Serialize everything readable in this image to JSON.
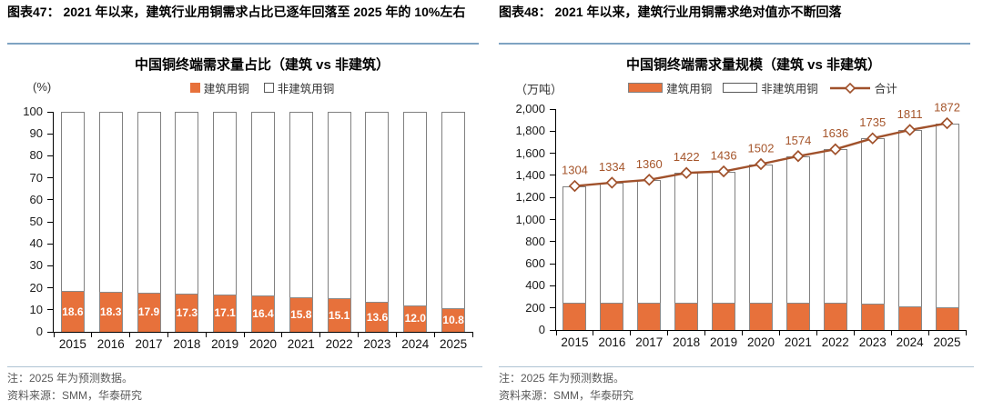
{
  "panels": [
    {
      "header": "图表47： 2021 年以来，建筑行业用铜需求占比已逐年回落至 2025 年的 10%左右",
      "chart_title": "中国铜终端需求量占比（建筑 vs 非建筑）",
      "unit_label": "(%)",
      "legend": {
        "construction": "建筑用铜",
        "non_construction": "非建筑用铜"
      },
      "note": "注：2025 年为预测数据。",
      "source": "资料来源：SMM，华泰研究"
    },
    {
      "header": "图表48： 2021 年以来，建筑行业用铜需求绝对值亦不断回落",
      "chart_title": "中国铜终端需求量规模（建筑 vs 非建筑）",
      "unit_label": "（万吨）",
      "legend": {
        "construction": "建筑用铜",
        "non_construction": "非建筑用铜",
        "total": "合计"
      },
      "note": "注：2025 年为预测数据。",
      "source": "资料来源：SMM，华泰研究"
    }
  ],
  "colors": {
    "bar_orange": "#E7713B",
    "bar_outline": "#808080",
    "line_brown": "#A0512B",
    "value_label_brown": "#A5552B",
    "header_rule_blue": "#7FA3C2",
    "footer_rule_blue": "#AFC3D4",
    "note_gray": "#595959"
  },
  "chart_data": [
    {
      "type": "bar",
      "stacked": true,
      "title": "中国铜终端需求量占比（建筑 vs 非建筑）",
      "unit": "%",
      "categories": [
        "2015",
        "2016",
        "2017",
        "2018",
        "2019",
        "2020",
        "2021",
        "2022",
        "2023",
        "2024",
        "2025"
      ],
      "series": [
        {
          "name": "建筑用铜",
          "values": [
            18.6,
            18.3,
            17.9,
            17.3,
            17.1,
            16.4,
            15.8,
            15.1,
            13.6,
            12.0,
            10.8
          ],
          "color": "#E7713B",
          "labels_shown": true
        },
        {
          "name": "非建筑用铜",
          "values": [
            81.4,
            81.7,
            82.1,
            82.7,
            82.9,
            83.6,
            84.2,
            84.9,
            86.4,
            88.0,
            89.2
          ],
          "color": "#FFFFFF"
        }
      ],
      "ylim": [
        0,
        100
      ],
      "ytick_step": 10,
      "grid": false,
      "legend_position": "top"
    },
    {
      "type": "bar+line",
      "stacked": true,
      "title": "中国铜终端需求量规模（建筑 vs 非建筑）",
      "unit": "万吨",
      "categories": [
        "2015",
        "2016",
        "2017",
        "2018",
        "2019",
        "2020",
        "2021",
        "2022",
        "2023",
        "2024",
        "2025"
      ],
      "series": [
        {
          "name": "建筑用铜",
          "type": "bar",
          "values": [
            243,
            244,
            243,
            246,
            246,
            246,
            249,
            247,
            236,
            217,
            202
          ],
          "color": "#E7713B"
        },
        {
          "name": "非建筑用铜",
          "type": "bar",
          "values": [
            1061,
            1090,
            1117,
            1176,
            1190,
            1256,
            1325,
            1389,
            1499,
            1594,
            1670
          ],
          "color": "#FFFFFF"
        },
        {
          "name": "合计",
          "type": "line",
          "values": [
            1304,
            1334,
            1360,
            1422,
            1436,
            1502,
            1574,
            1636,
            1735,
            1811,
            1872
          ],
          "color": "#A0512B",
          "marker": "diamond",
          "labels_shown": true
        }
      ],
      "ylim": [
        0,
        2000
      ],
      "ytick_step": 200,
      "grid": false,
      "legend_position": "top"
    }
  ]
}
